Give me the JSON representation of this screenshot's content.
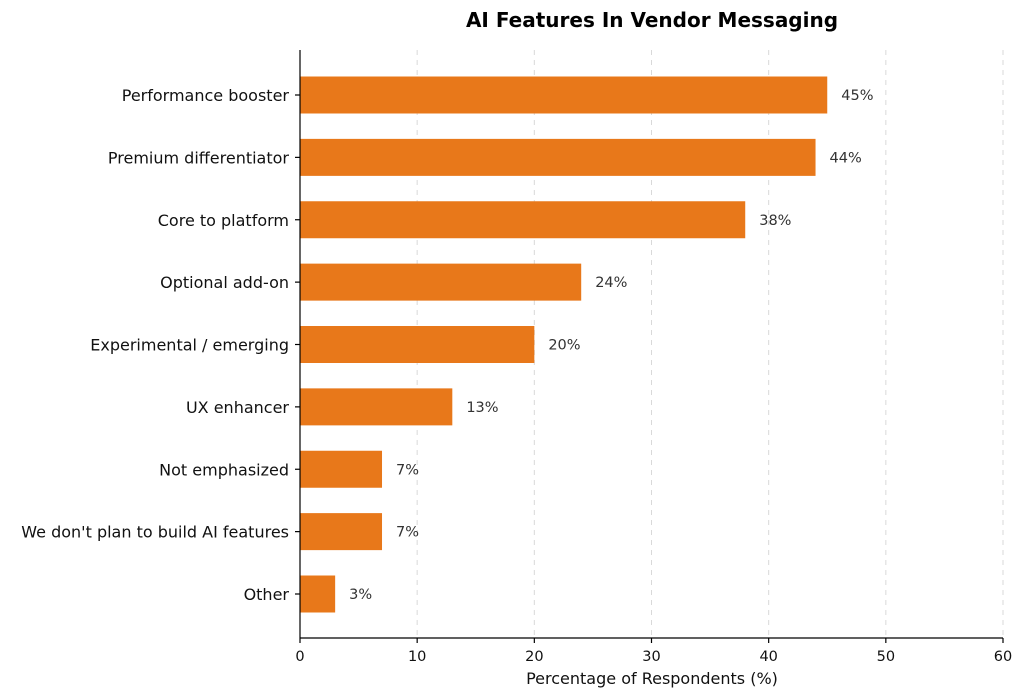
{
  "chart_data": {
    "type": "bar",
    "orientation": "horizontal",
    "title": "AI Features In Vendor Messaging",
    "xlabel": "Percentage of Respondents (%)",
    "ylabel": "",
    "categories": [
      "Performance booster",
      "Premium differentiator",
      "Core to platform",
      "Optional add-on",
      "Experimental / emerging",
      "UX enhancer",
      "Not emphasized",
      "We don't plan to build AI features",
      "Other"
    ],
    "values": [
      45,
      44,
      38,
      24,
      20,
      13,
      7,
      7,
      3
    ],
    "value_labels": [
      "45%",
      "44%",
      "38%",
      "24%",
      "20%",
      "13%",
      "7%",
      "7%",
      "3%"
    ],
    "xlim": [
      0,
      60
    ],
    "xticks": [
      0,
      10,
      20,
      30,
      40,
      50,
      60
    ],
    "xtick_labels": [
      "0",
      "10",
      "20",
      "30",
      "40",
      "50",
      "60"
    ],
    "grid": "vertical dashed",
    "legend": "none",
    "colors": {
      "bar": "#e8781a"
    }
  }
}
